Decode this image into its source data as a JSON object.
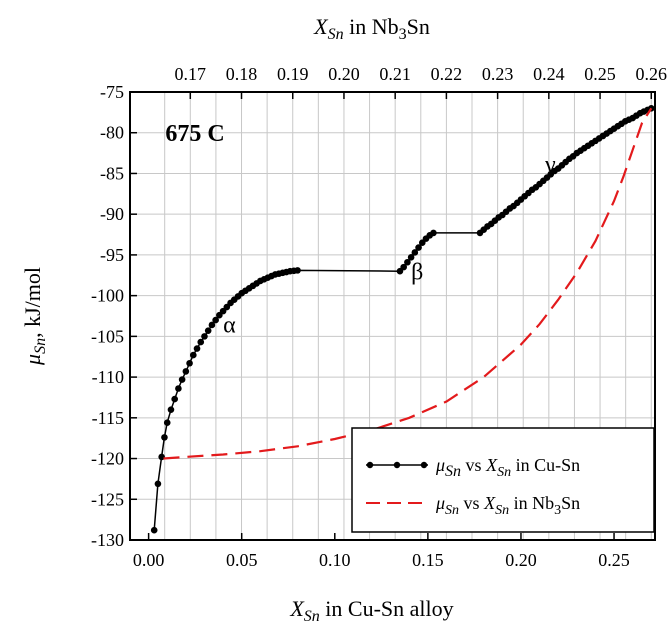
{
  "chart_data": {
    "type": "line",
    "xlabel_bottom": {
      "var": "X",
      "sub": "Sn",
      "rest": " in Cu-Sn alloy"
    },
    "xlabel_top": {
      "var": "X",
      "sub": "Sn",
      "rest": " in Nb",
      "sub2": "3",
      "rest2": "Sn"
    },
    "ylabel": {
      "var": "μ",
      "sub": "Sn",
      "rest": ", kJ/mol"
    },
    "xlim": [
      -0.01,
      0.272
    ],
    "ylim": [
      -130,
      -75
    ],
    "x_top_lim": [
      0.16477,
      0.26
    ],
    "x_ticks": [
      "0.00",
      "0.05",
      "0.10",
      "0.15",
      "0.20",
      "0.25"
    ],
    "x_tick_values": [
      0,
      0.05,
      0.1,
      0.15,
      0.2,
      0.25
    ],
    "y_ticks": [
      "-75",
      "-80",
      "-85",
      "-90",
      "-95",
      "-100",
      "-105",
      "-110",
      "-115",
      "-120",
      "-125",
      "-130"
    ],
    "y_tick_values": [
      -75,
      -80,
      -85,
      -90,
      -95,
      -100,
      -105,
      -110,
      -115,
      -120,
      -125,
      -130
    ],
    "x_top_ticks": [
      "0.17",
      "0.18",
      "0.19",
      "0.20",
      "0.21",
      "0.22",
      "0.23",
      "0.24",
      "0.25",
      "0.26"
    ],
    "x_top_tick_values": [
      0.17,
      0.18,
      0.19,
      0.2,
      0.21,
      0.22,
      0.23,
      0.24,
      0.25,
      0.26
    ],
    "grid": true,
    "annotations": [
      {
        "text": "675 C",
        "x": 0.009,
        "y": -81.0,
        "bold": true
      },
      {
        "text": "α",
        "x": 0.04,
        "y": -104.5,
        "bold": false
      },
      {
        "text": "β",
        "x": 0.141,
        "y": -98.0,
        "bold": false
      },
      {
        "text": "γ",
        "x": 0.213,
        "y": -84.8,
        "bold": false
      }
    ],
    "series": [
      {
        "name": "μSn vs XSn in Cu-Sn",
        "legend": {
          "v1": "μ",
          "s1": "Sn",
          "mid": " vs ",
          "v2": "X",
          "s2": "Sn",
          "end": " in Cu-Sn"
        },
        "color": "#000000",
        "style": "solid-markers",
        "x": [
          0.003,
          0.005,
          0.007,
          0.0085,
          0.01,
          0.012,
          0.014,
          0.016,
          0.018,
          0.02,
          0.022,
          0.024,
          0.026,
          0.028,
          0.03,
          0.032,
          0.034,
          0.036,
          0.038,
          0.04,
          0.042,
          0.044,
          0.046,
          0.048,
          0.05,
          0.052,
          0.054,
          0.056,
          0.058,
          0.06,
          0.062,
          0.064,
          0.066,
          0.068,
          0.07,
          0.072,
          0.074,
          0.076,
          0.078,
          0.08,
          0.135,
          0.137,
          0.139,
          0.141,
          0.143,
          0.145,
          0.147,
          0.149,
          0.151,
          0.153,
          0.178,
          0.18,
          0.182,
          0.184,
          0.186,
          0.188,
          0.19,
          0.192,
          0.194,
          0.196,
          0.198,
          0.2,
          0.202,
          0.204,
          0.206,
          0.208,
          0.21,
          0.212,
          0.214,
          0.216,
          0.218,
          0.22,
          0.222,
          0.224,
          0.226,
          0.228,
          0.23,
          0.232,
          0.234,
          0.236,
          0.238,
          0.24,
          0.242,
          0.244,
          0.246,
          0.248,
          0.25,
          0.252,
          0.254,
          0.256,
          0.258,
          0.26,
          0.262,
          0.264,
          0.266,
          0.268,
          0.27
        ],
        "y": [
          -128.8,
          -123.1,
          -119.8,
          -117.4,
          -115.6,
          -114.0,
          -112.7,
          -111.4,
          -110.3,
          -109.3,
          -108.3,
          -107.3,
          -106.5,
          -105.7,
          -105.0,
          -104.3,
          -103.6,
          -103.0,
          -102.4,
          -101.9,
          -101.4,
          -100.9,
          -100.5,
          -100.1,
          -99.7,
          -99.4,
          -99.1,
          -98.8,
          -98.5,
          -98.2,
          -98.0,
          -97.8,
          -97.6,
          -97.4,
          -97.3,
          -97.2,
          -97.1,
          -97.0,
          -96.95,
          -96.9,
          -97.0,
          -96.5,
          -95.9,
          -95.3,
          -94.7,
          -94.1,
          -93.5,
          -93.0,
          -92.6,
          -92.3,
          -92.3,
          -91.9,
          -91.5,
          -91.2,
          -90.8,
          -90.4,
          -90.1,
          -89.7,
          -89.3,
          -89.0,
          -88.6,
          -88.2,
          -87.8,
          -87.4,
          -87.0,
          -86.7,
          -86.3,
          -85.9,
          -85.5,
          -85.1,
          -84.7,
          -84.4,
          -84.0,
          -83.6,
          -83.2,
          -82.9,
          -82.5,
          -82.2,
          -81.9,
          -81.6,
          -81.3,
          -81.0,
          -80.7,
          -80.4,
          -80.1,
          -79.8,
          -79.5,
          -79.2,
          -78.9,
          -78.6,
          -78.4,
          -78.2,
          -77.9,
          -77.6,
          -77.4,
          -77.2,
          -77.0
        ]
      },
      {
        "name": "μSn vs XSn in Nb3Sn",
        "legend": {
          "v1": "μ",
          "s1": "Sn",
          "mid": " vs ",
          "v2": "X",
          "s2": "Sn",
          "end": " in Nb",
          "s3": "3",
          "end2": "Sn"
        },
        "color": "#e31a1c",
        "style": "dashed",
        "x": [
          0.008,
          0.02,
          0.04,
          0.06,
          0.08,
          0.1,
          0.12,
          0.14,
          0.16,
          0.18,
          0.2,
          0.21,
          0.22,
          0.23,
          0.24,
          0.25,
          0.255,
          0.26,
          0.265,
          0.27
        ],
        "y": [
          -120.0,
          -119.8,
          -119.5,
          -119.1,
          -118.5,
          -117.6,
          -116.5,
          -115.0,
          -113.0,
          -110.0,
          -106.0,
          -103.5,
          -100.5,
          -97.2,
          -93.3,
          -88.4,
          -85.4,
          -82.1,
          -78.8,
          -77.0
        ]
      }
    ]
  }
}
